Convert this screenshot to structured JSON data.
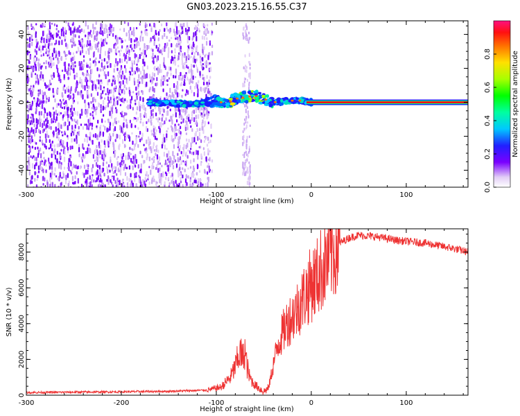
{
  "title": "GN03.2023.215.16.55.C37",
  "chart_data": [
    {
      "type": "heatmap",
      "xlabel": "Height of straight line (km)",
      "ylabel": "Frequency (Hz)",
      "xlim": [
        -300,
        165
      ],
      "ylim": [
        -50,
        48
      ],
      "xticks": [
        "-300",
        "-200",
        "-100",
        "0",
        "100"
      ],
      "yticks": [
        "-40",
        "-20",
        "0",
        "20",
        "40"
      ],
      "colorbar": {
        "label": "Normalized spectral amplitude",
        "range": [
          0,
          1
        ],
        "ticks": [
          "0.0",
          "0.2",
          "0.4",
          "0.6",
          "0.8"
        ]
      },
      "features": {
        "noise_floor_x_range": [
          -300,
          -105
        ],
        "isolated_noise_column_x": [
          -73,
          -65
        ],
        "signal_line": [
          {
            "x": -170,
            "y": 0
          },
          {
            "x": -120,
            "y": -1
          },
          {
            "x": -100,
            "y": 1
          },
          {
            "x": -90,
            "y": -1
          },
          {
            "x": -80,
            "y": 2
          },
          {
            "x": -70,
            "y": 3
          },
          {
            "x": -60,
            "y": 4
          },
          {
            "x": -50,
            "y": 2
          },
          {
            "x": -40,
            "y": 0
          },
          {
            "x": -20,
            "y": 1
          },
          {
            "x": -10,
            "y": 1
          },
          {
            "x": 0,
            "y": 0
          },
          {
            "x": 165,
            "y": 0
          }
        ]
      }
    },
    {
      "type": "line",
      "xlabel": "Height of straight line (km)",
      "ylabel": "SNR (10 * v/v)",
      "xlim": [
        -300,
        165
      ],
      "ylim": [
        0,
        9300
      ],
      "xticks": [
        "-300",
        "-200",
        "-100",
        "0",
        "100"
      ],
      "yticks": [
        "0",
        "2000",
        "4000",
        "6000",
        "8000"
      ],
      "color": "#ee3333",
      "series": [
        {
          "x": [
            -300,
            -250,
            -200,
            -150,
            -110,
            -95,
            -85,
            -80,
            -75,
            -72,
            -70,
            -68,
            -65,
            -60,
            -55,
            -50,
            -45,
            -40,
            -35,
            -30,
            -25,
            -20,
            -15,
            -10,
            -5,
            0,
            5,
            10,
            20,
            30,
            40,
            50,
            60,
            70,
            80,
            90,
            100,
            110,
            120,
            130,
            140,
            150,
            165
          ],
          "y": [
            150,
            170,
            190,
            220,
            280,
            450,
            1000,
            1600,
            2400,
            2000,
            2600,
            1700,
            1000,
            600,
            400,
            200,
            400,
            1700,
            2900,
            3500,
            4100,
            4400,
            4800,
            5300,
            5800,
            6200,
            6500,
            7000,
            7800,
            8500,
            8800,
            8950,
            8900,
            8850,
            8750,
            8650,
            8600,
            8550,
            8500,
            8400,
            8300,
            8200,
            8000
          ]
        }
      ]
    }
  ]
}
